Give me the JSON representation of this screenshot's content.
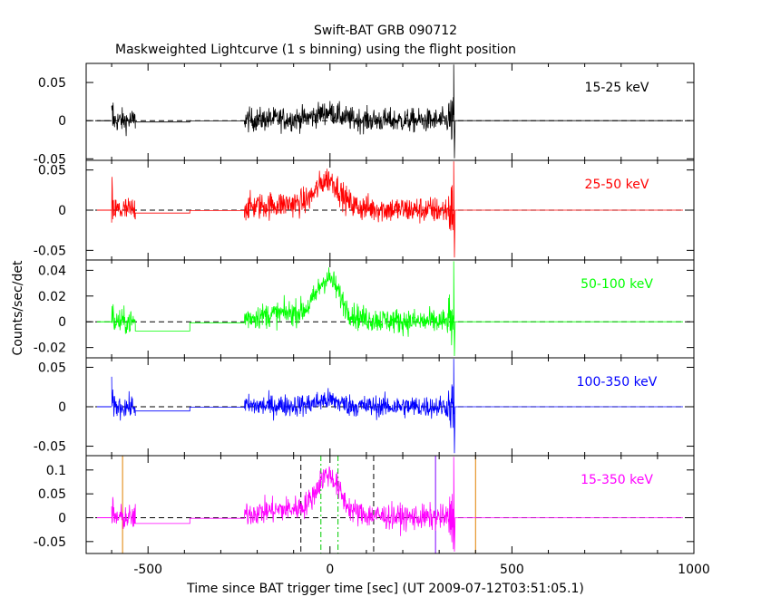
{
  "chart_data": {
    "type": "line",
    "title": "Swift-BAT GRB 090712",
    "subtitle": "Maskweighted Lightcurve (1 s binning) using the flight position",
    "xlabel": "Time since BAT trigger time [sec] (UT 2009-07-12T03:51:05.1)",
    "ylabel": "Counts/sec/det",
    "xlim": [
      -670,
      1000
    ],
    "x_ticks": [
      "-500",
      "0",
      "500",
      "1000"
    ],
    "panels": [
      {
        "label": "15-25 keV",
        "color": "#000000",
        "ylim": [
          -0.052,
          0.075
        ],
        "y_ticks": [
          "0.05",
          "0",
          "-0.05"
        ],
        "noise_amp": 0.011,
        "peak": 0.009,
        "offset": -0.004
      },
      {
        "label": "25-50 keV",
        "color": "#ff0000",
        "ylim": [
          -0.062,
          0.062
        ],
        "y_ticks": [
          "0.05",
          "0",
          "-0.05"
        ],
        "noise_amp": 0.012,
        "peak": 0.032,
        "offset": -0.008
      },
      {
        "label": "50-100 keV",
        "color": "#00ff00",
        "ylim": [
          -0.028,
          0.048
        ],
        "y_ticks": [
          "0.04",
          "0.02",
          "0",
          "-0.02"
        ],
        "noise_amp": 0.007,
        "peak": 0.028,
        "offset": -0.016
      },
      {
        "label": "100-350 keV",
        "color": "#0000ff",
        "ylim": [
          -0.062,
          0.062
        ],
        "y_ticks": [
          "0.05",
          "0",
          "-0.05"
        ],
        "noise_amp": 0.01,
        "peak": 0.007,
        "offset": -0.012
      },
      {
        "label": "15-350 keV",
        "color": "#ff00ff",
        "ylim": [
          -0.075,
          0.13
        ],
        "y_ticks": [
          "0.1",
          "0.05",
          "0",
          "-0.05"
        ],
        "noise_amp": 0.019,
        "peak": 0.075,
        "offset": -0.027
      }
    ],
    "segments": {
      "data1": [
        -600,
        -535
      ],
      "flat_a": [
        -535,
        -385
      ],
      "flat_b": [
        -385,
        -235
      ],
      "data2": [
        -235,
        340
      ],
      "flat_end": [
        340,
        970
      ]
    },
    "burst_peak_time": -5,
    "markers_black": [
      -80,
      120
    ],
    "markers_green": [
      -25,
      22
    ],
    "marker_purple": 290,
    "markers_orange": [
      -570,
      400
    ]
  }
}
